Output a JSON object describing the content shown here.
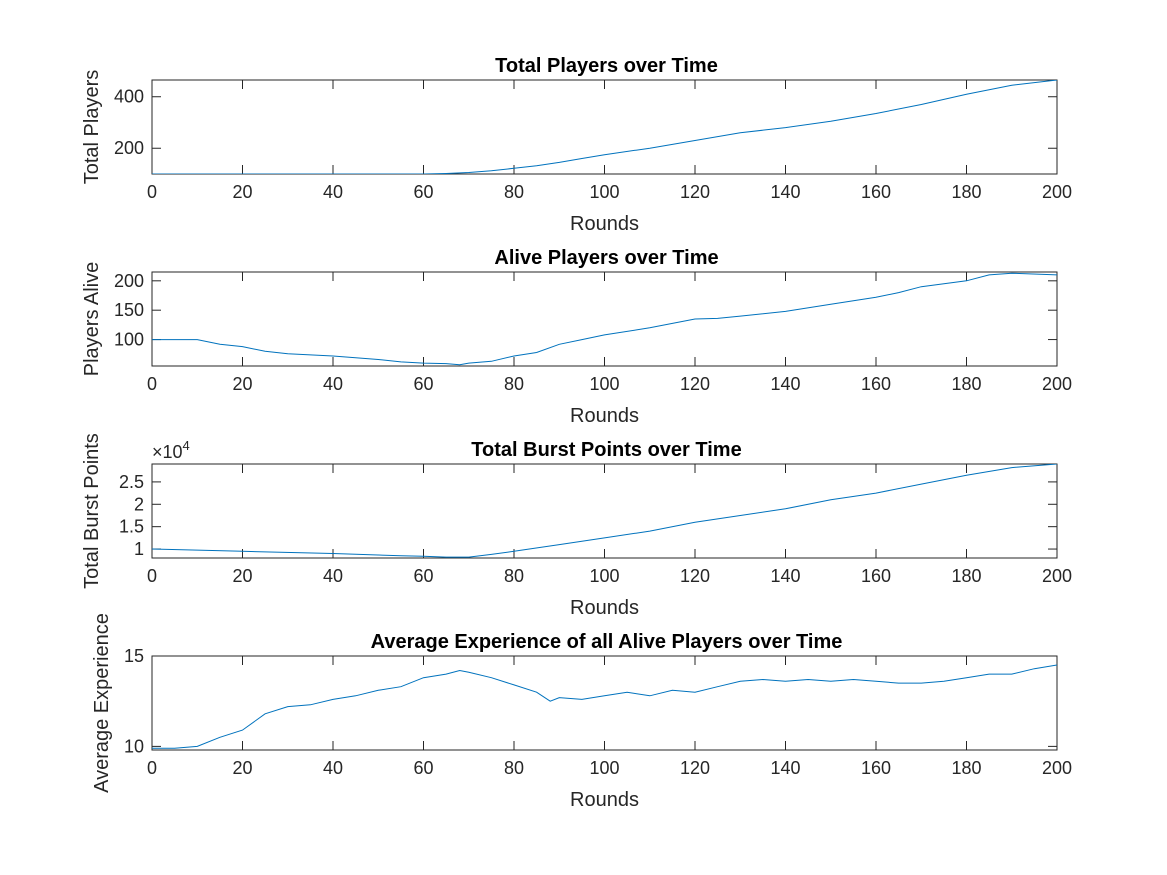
{
  "chart_data": [
    {
      "type": "line",
      "title": "Total Players over Time",
      "xlabel": "Rounds",
      "ylabel": "Total Players",
      "xlim": [
        0,
        200
      ],
      "ylim": [
        100,
        465
      ],
      "xticks": [
        0,
        20,
        40,
        60,
        80,
        100,
        120,
        140,
        160,
        180,
        200
      ],
      "yticks": [
        200,
        400
      ],
      "exponent_label": "",
      "line_color": "#0072BD",
      "grid": false,
      "x": [
        0,
        60,
        65,
        70,
        75,
        80,
        85,
        90,
        95,
        100,
        110,
        120,
        130,
        140,
        150,
        160,
        170,
        180,
        190,
        200
      ],
      "y": [
        100,
        100,
        102,
        106,
        113,
        122,
        132,
        145,
        160,
        175,
        200,
        230,
        260,
        280,
        305,
        335,
        370,
        410,
        445,
        465
      ]
    },
    {
      "type": "line",
      "title": "Alive Players over Time",
      "xlabel": "Rounds",
      "ylabel": "Players Alive",
      "xlim": [
        0,
        200
      ],
      "ylim": [
        55,
        215
      ],
      "xticks": [
        0,
        20,
        40,
        60,
        80,
        100,
        120,
        140,
        160,
        180,
        200
      ],
      "yticks": [
        100,
        150,
        200
      ],
      "exponent_label": "",
      "line_color": "#0072BD",
      "grid": false,
      "x": [
        0,
        10,
        15,
        20,
        25,
        30,
        40,
        50,
        55,
        60,
        65,
        68,
        70,
        75,
        80,
        85,
        90,
        95,
        100,
        110,
        120,
        125,
        130,
        140,
        150,
        160,
        165,
        170,
        180,
        185,
        190,
        200
      ],
      "y": [
        100,
        100,
        92,
        88,
        80,
        76,
        72,
        66,
        62,
        60,
        59,
        57,
        60,
        63,
        72,
        78,
        92,
        100,
        108,
        120,
        135,
        136,
        140,
        148,
        160,
        172,
        180,
        190,
        200,
        210,
        213,
        210
      ]
    },
    {
      "type": "line",
      "title": "Total Burst Points over Time",
      "xlabel": "Rounds",
      "ylabel": "Total Burst Points",
      "xlim": [
        0,
        200
      ],
      "ylim": [
        8000,
        29000
      ],
      "xticks": [
        0,
        20,
        40,
        60,
        80,
        100,
        120,
        140,
        160,
        180,
        200
      ],
      "yticks": [
        10000,
        15000,
        20000,
        25000
      ],
      "ytick_labels": [
        "1",
        "1.5",
        "2",
        "2.5"
      ],
      "exponent_label": "×10",
      "exponent_power": "4",
      "line_color": "#0072BD",
      "grid": false,
      "x": [
        0,
        20,
        40,
        55,
        60,
        65,
        70,
        75,
        80,
        90,
        100,
        110,
        120,
        130,
        140,
        150,
        160,
        170,
        180,
        190,
        200
      ],
      "y": [
        10000,
        9500,
        9000,
        8500,
        8400,
        8200,
        8200,
        8800,
        9500,
        11000,
        12500,
        14000,
        16000,
        17500,
        19000,
        21000,
        22500,
        24500,
        26500,
        28200,
        29000
      ]
    },
    {
      "type": "line",
      "title": "Average Experience of all Alive Players over Time",
      "xlabel": "Rounds",
      "ylabel": "Average Experience",
      "xlim": [
        0,
        200
      ],
      "ylim": [
        9.8,
        15
      ],
      "xticks": [
        0,
        20,
        40,
        60,
        80,
        100,
        120,
        140,
        160,
        180,
        200
      ],
      "yticks": [
        10,
        15
      ],
      "exponent_label": "",
      "line_color": "#0072BD",
      "grid": false,
      "x": [
        0,
        5,
        10,
        15,
        20,
        25,
        30,
        35,
        40,
        45,
        50,
        55,
        60,
        65,
        68,
        70,
        75,
        80,
        85,
        88,
        90,
        95,
        100,
        105,
        110,
        115,
        120,
        125,
        130,
        135,
        140,
        145,
        150,
        155,
        160,
        165,
        170,
        175,
        180,
        185,
        190,
        195,
        200
      ],
      "y": [
        9.9,
        9.9,
        10.0,
        10.5,
        10.9,
        11.8,
        12.2,
        12.3,
        12.6,
        12.8,
        13.1,
        13.3,
        13.8,
        14.0,
        14.2,
        14.1,
        13.8,
        13.4,
        13.0,
        12.5,
        12.7,
        12.6,
        12.8,
        13.0,
        12.8,
        13.1,
        13.0,
        13.3,
        13.6,
        13.7,
        13.6,
        13.7,
        13.6,
        13.7,
        13.6,
        13.5,
        13.5,
        13.6,
        13.8,
        14.0,
        14.0,
        14.3,
        14.5
      ]
    }
  ]
}
